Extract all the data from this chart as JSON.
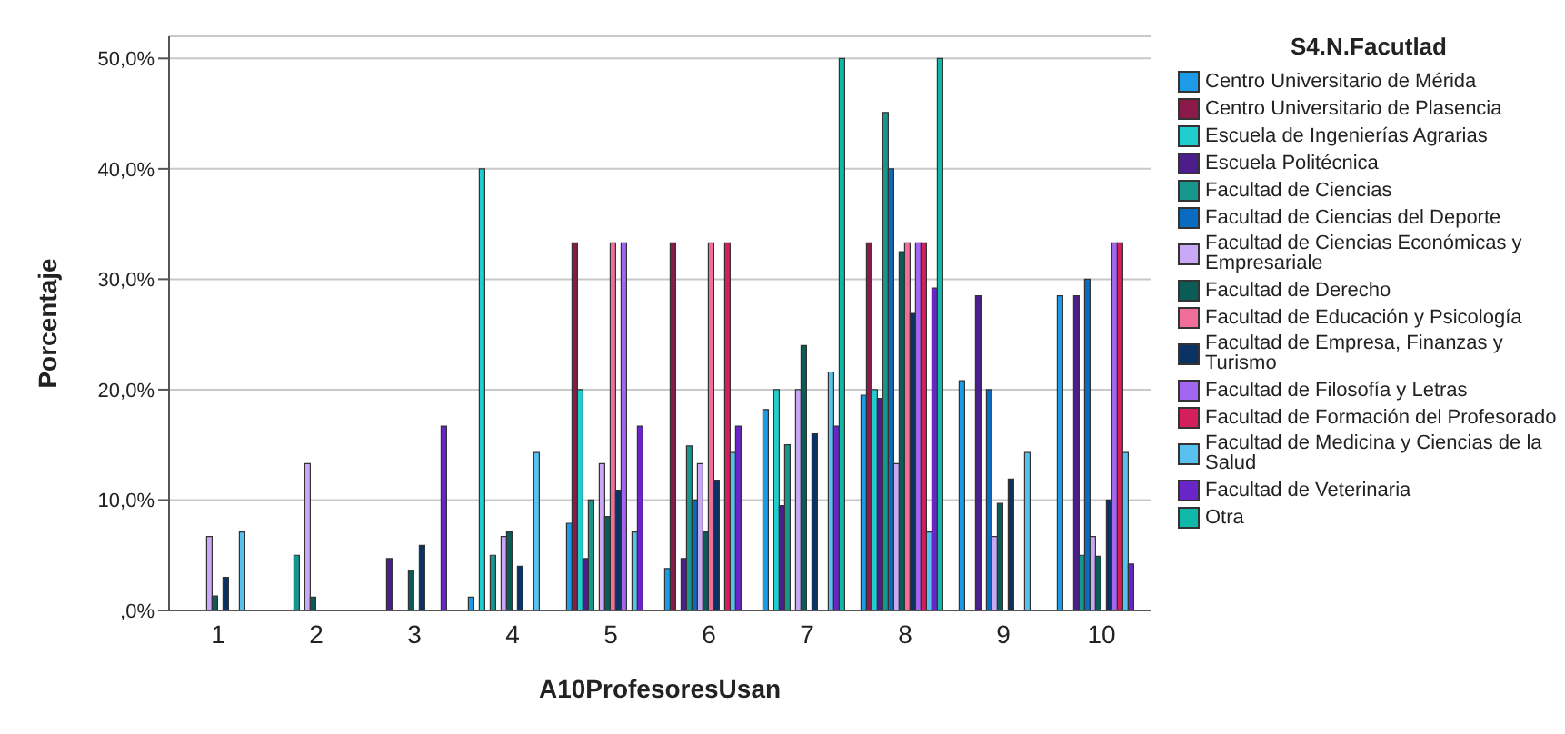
{
  "chart_data": {
    "type": "bar",
    "xlabel": "A10ProfesoresUsan",
    "ylabel": "Porcentaje",
    "legend_title": "S4.N.Facutlad",
    "legend": "right",
    "grid": "y",
    "categories": [
      "1",
      "2",
      "3",
      "4",
      "5",
      "6",
      "7",
      "8",
      "9",
      "10"
    ],
    "ylim": [
      0,
      52
    ],
    "yticks": [
      {
        "value": 0,
        "label": ",0%"
      },
      {
        "value": 10,
        "label": "10,0%"
      },
      {
        "value": 20,
        "label": "20,0%"
      },
      {
        "value": 30,
        "label": "30,0%"
      },
      {
        "value": 40,
        "label": "40,0%"
      },
      {
        "value": 50,
        "label": "50,0%"
      }
    ],
    "series": [
      {
        "name": "Centro Universitario de Mérida",
        "color": "#1e9be8",
        "values": [
          null,
          null,
          null,
          1.2,
          7.9,
          3.8,
          18.2,
          19.5,
          20.8,
          28.5
        ]
      },
      {
        "name": "Centro Universitario de Plasencia",
        "color": "#8b1a4a",
        "values": [
          null,
          null,
          null,
          null,
          33.3,
          33.3,
          null,
          33.3,
          null,
          null
        ]
      },
      {
        "name": "Escuela de Ingenierías Agrarias",
        "color": "#1fcfcf",
        "values": [
          null,
          null,
          null,
          40,
          20,
          null,
          20,
          20,
          null,
          null
        ]
      },
      {
        "name": "Escuela Politécnica",
        "color": "#4b1e8c",
        "values": [
          null,
          null,
          4.7,
          null,
          4.7,
          4.7,
          9.5,
          19.2,
          28.5,
          28.5
        ]
      },
      {
        "name": "Facultad de Ciencias",
        "color": "#17968e",
        "values": [
          null,
          5,
          null,
          5,
          10,
          14.9,
          15,
          45.1,
          null,
          5
        ]
      },
      {
        "name": "Facultad de Ciencias del Deporte",
        "color": "#0a6cc0",
        "values": [
          null,
          null,
          null,
          null,
          null,
          10,
          null,
          40,
          20,
          30
        ]
      },
      {
        "name": "Facultad de Ciencias Económicas y Empresariale",
        "color": "#c9a9f5",
        "values": [
          6.7,
          13.3,
          null,
          6.7,
          13.3,
          13.3,
          20,
          13.3,
          6.7,
          6.7
        ]
      },
      {
        "name": "Facultad de Derecho",
        "color": "#0b5b57",
        "values": [
          1.3,
          1.2,
          3.6,
          7.1,
          8.5,
          7.1,
          24,
          32.5,
          9.7,
          4.9
        ]
      },
      {
        "name": "Facultad de Educación y Psicología",
        "color": "#f06e9a",
        "values": [
          null,
          null,
          null,
          null,
          33.3,
          33.3,
          null,
          33.3,
          null,
          null
        ]
      },
      {
        "name": "Facultad de Empresa, Finanzas y Turismo",
        "color": "#0b3264",
        "values": [
          3,
          null,
          5.9,
          4,
          10.9,
          11.8,
          16,
          26.9,
          11.9,
          10
        ]
      },
      {
        "name": "Facultad de Filosofía y Letras",
        "color": "#a366f0",
        "values": [
          null,
          null,
          null,
          null,
          33.3,
          null,
          null,
          33.3,
          null,
          33.3
        ]
      },
      {
        "name": "Facultad de Formación del Profesorado",
        "color": "#d41f5c",
        "values": [
          null,
          null,
          null,
          null,
          null,
          33.3,
          null,
          33.3,
          null,
          33.3
        ]
      },
      {
        "name": "Facultad de Medicina y Ciencias de la Salud",
        "color": "#59c1f0",
        "values": [
          7.1,
          null,
          null,
          14.3,
          7.1,
          14.3,
          21.6,
          7.1,
          14.3,
          14.3
        ]
      },
      {
        "name": "Facultad de Veterinaria",
        "color": "#6a25c8",
        "values": [
          null,
          null,
          16.7,
          null,
          16.7,
          16.7,
          16.7,
          29.2,
          null,
          4.2
        ]
      },
      {
        "name": "Otra",
        "color": "#10b8aa",
        "values": [
          null,
          null,
          null,
          null,
          null,
          null,
          50,
          50,
          null,
          null
        ]
      }
    ]
  }
}
